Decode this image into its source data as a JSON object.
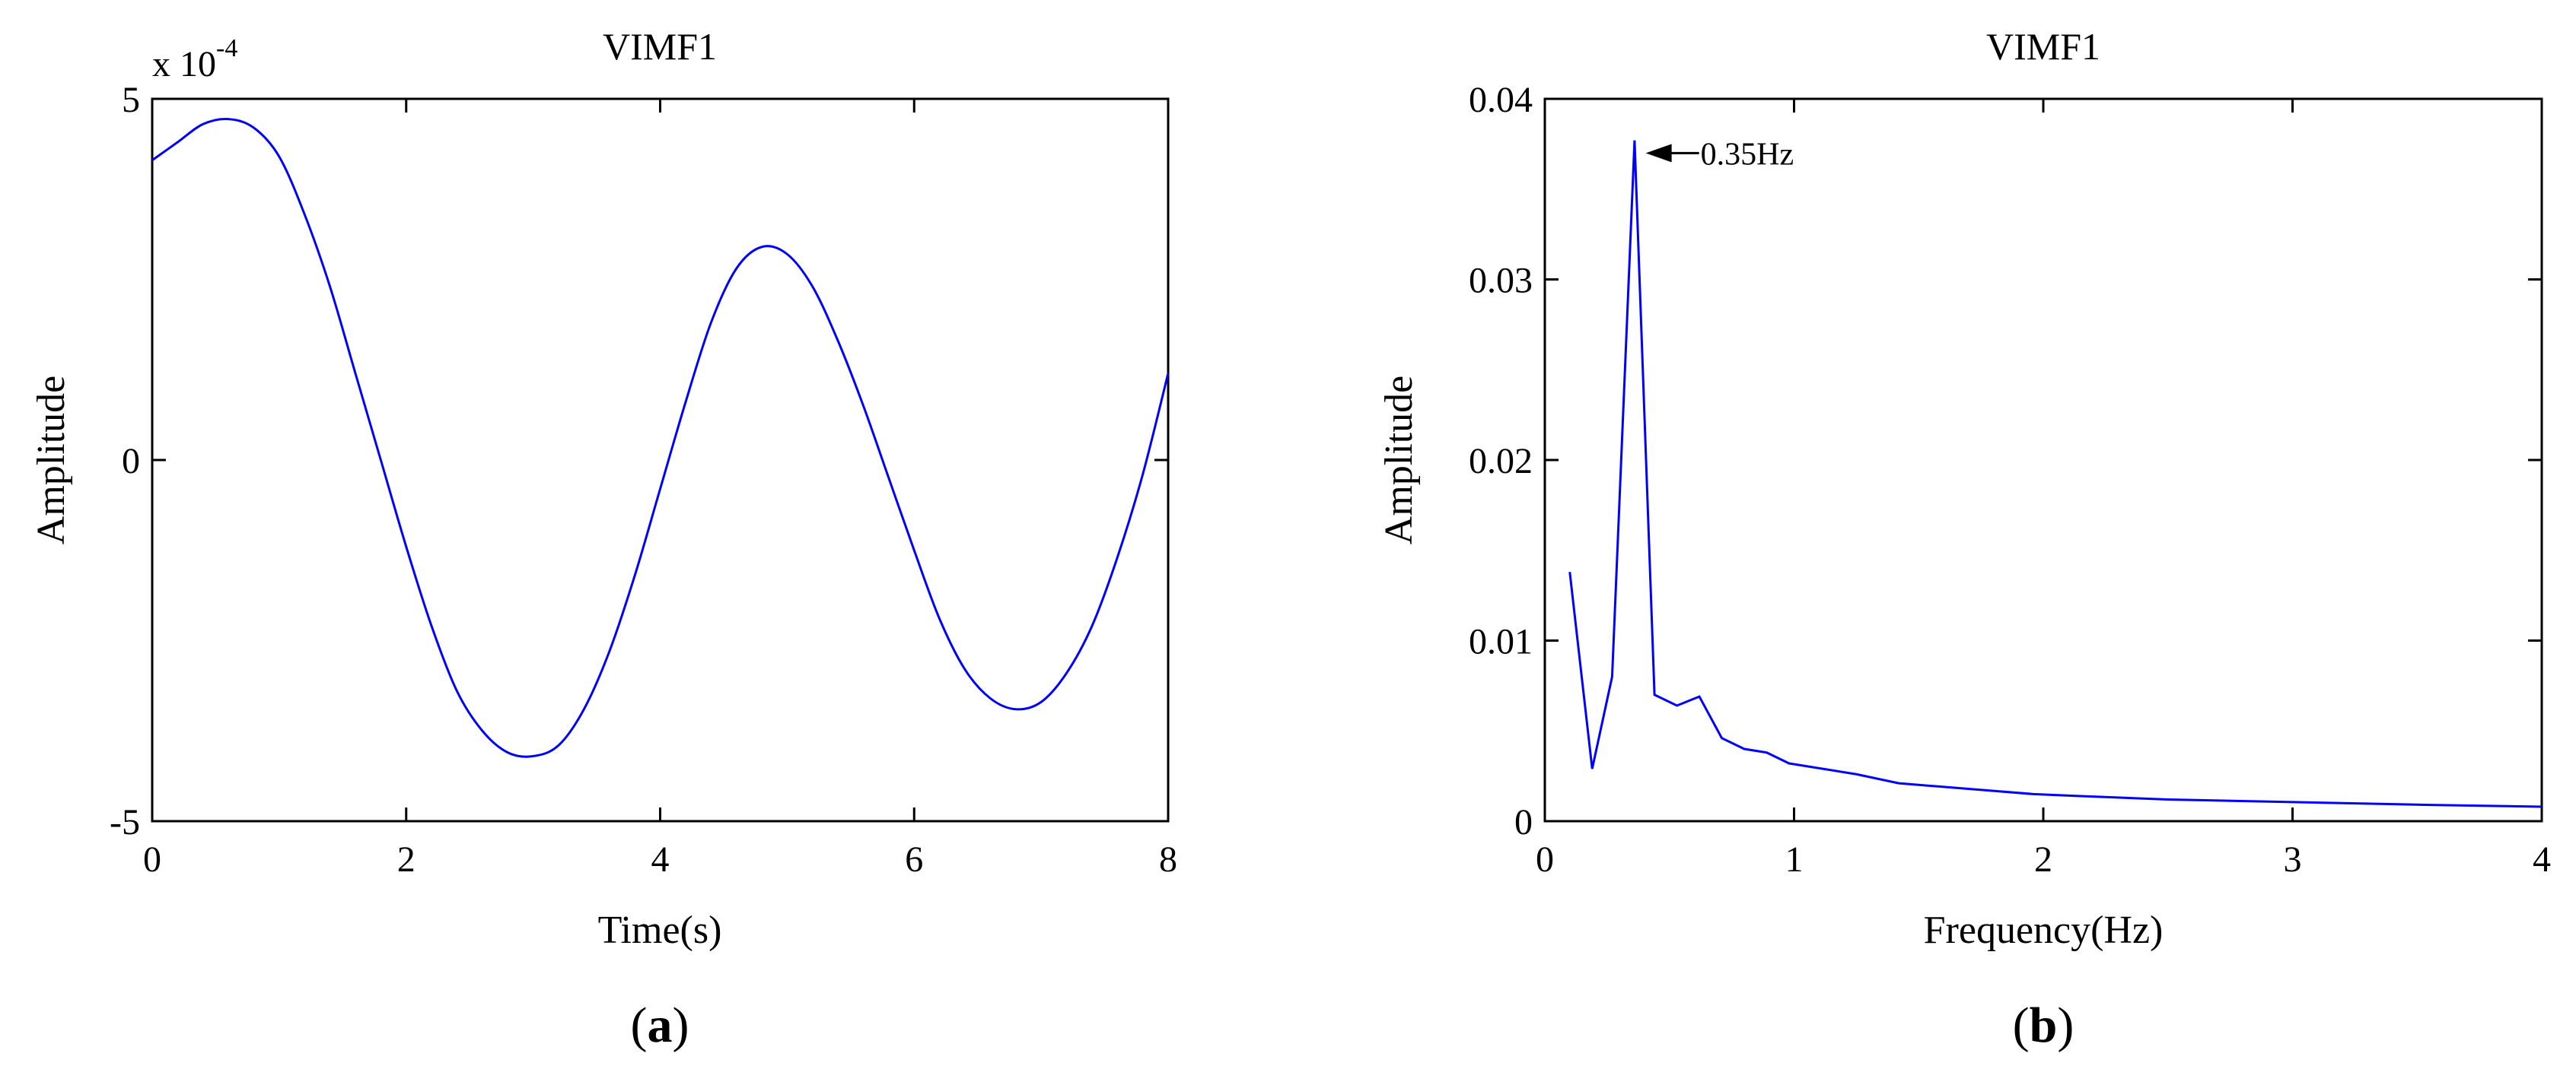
{
  "chart_data": [
    {
      "type": "line",
      "panel_label": "a",
      "title": "VIMF1",
      "xlabel": "Time(s)",
      "ylabel": "Amplitude",
      "y_multiplier": "x 10",
      "y_multiplier_exponent": "-4",
      "xlim": [
        0,
        8
      ],
      "ylim": [
        -5,
        5
      ],
      "xticks": [
        0,
        2,
        4,
        6,
        8
      ],
      "yticks": [
        -5,
        0,
        5
      ],
      "grid": false,
      "color": "#0000ff",
      "series": [
        {
          "x": [
            0,
            0.2,
            0.4,
            0.6,
            0.8,
            1.0,
            1.2,
            1.4,
            1.6,
            1.8,
            2.0,
            2.2,
            2.4,
            2.6,
            2.8,
            3.0,
            3.2,
            3.4,
            3.6,
            3.8,
            4.0,
            4.2,
            4.4,
            4.6,
            4.8,
            5.0,
            5.2,
            5.4,
            5.6,
            5.8,
            6.0,
            6.2,
            6.4,
            6.6,
            6.8,
            7.0,
            7.2,
            7.4,
            7.6,
            7.8,
            8.0
          ],
          "y": [
            4.15,
            4.4,
            4.65,
            4.72,
            4.6,
            4.2,
            3.4,
            2.4,
            1.2,
            0.0,
            -1.2,
            -2.3,
            -3.2,
            -3.75,
            -4.05,
            -4.1,
            -3.95,
            -3.45,
            -2.65,
            -1.6,
            -0.4,
            0.8,
            1.9,
            2.65,
            2.95,
            2.85,
            2.4,
            1.65,
            0.75,
            -0.25,
            -1.25,
            -2.2,
            -2.9,
            -3.3,
            -3.45,
            -3.35,
            -2.95,
            -2.3,
            -1.35,
            -0.2,
            1.2
          ]
        }
      ]
    },
    {
      "type": "line",
      "panel_label": "b",
      "title": "VIMF1",
      "xlabel": "Frequency(Hz)",
      "ylabel": "Amplitude",
      "xlim": [
        0,
        4
      ],
      "ylim": [
        0,
        0.04
      ],
      "xticks": [
        "0",
        "1",
        "2",
        "3",
        "4"
      ],
      "yticks": [
        "0",
        "0.01",
        "0.02",
        "0.03",
        "0.04"
      ],
      "grid": false,
      "color": "#0000ff",
      "annotations": [
        {
          "text": "0.35Hz",
          "x": 0.35,
          "y": 0.0375
        }
      ],
      "series": [
        {
          "x": [
            0.1,
            0.19,
            0.27,
            0.36,
            0.44,
            0.53,
            0.62,
            0.71,
            0.8,
            0.89,
            0.98,
            1.07,
            1.25,
            1.42,
            1.6,
            1.78,
            1.96,
            2.13,
            2.5,
            2.85,
            3.2,
            3.55,
            4.0
          ],
          "y": [
            0.0138,
            0.0029,
            0.008,
            0.0377,
            0.007,
            0.0064,
            0.0069,
            0.0046,
            0.004,
            0.0038,
            0.0032,
            0.003,
            0.0026,
            0.0021,
            0.0019,
            0.0017,
            0.0015,
            0.0014,
            0.0012,
            0.0011,
            0.001,
            0.0009,
            0.0008
          ]
        }
      ]
    }
  ]
}
